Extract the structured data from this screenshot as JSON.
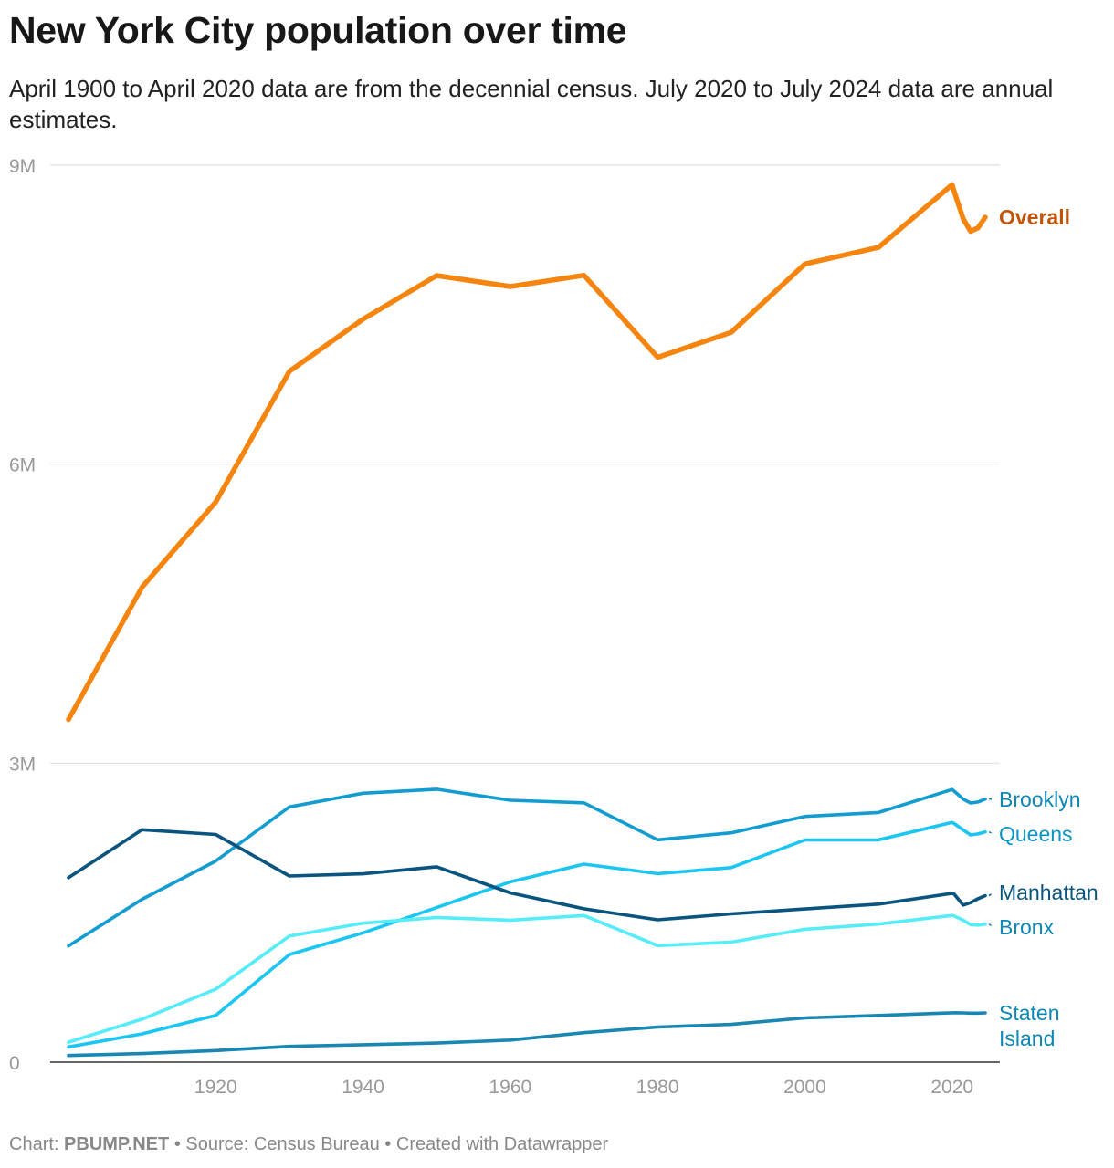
{
  "header": {
    "title": "New York City population over time",
    "subtitle": "April 1900 to April 2020 data are from the decennial census. July 2020 to July 2024 data are annual estimates."
  },
  "footer": {
    "chart_prefix": "Chart:",
    "chart_by": "PBUMP.NET",
    "sep1": "•",
    "source": "Source: Census Bureau",
    "sep2": "•",
    "created": "Created with Datawrapper"
  },
  "chart_data": {
    "type": "line",
    "title": "New York City population over time",
    "xlim": [
      1900,
      2024
    ],
    "ylim": [
      0,
      9000000
    ],
    "x_ticks": [
      {
        "value": 1920,
        "label": "1920"
      },
      {
        "value": 1940,
        "label": "1940"
      },
      {
        "value": 1960,
        "label": "1960"
      },
      {
        "value": 1980,
        "label": "1980"
      },
      {
        "value": 2000,
        "label": "2000"
      },
      {
        "value": 2020,
        "label": "2020"
      }
    ],
    "y_ticks": [
      {
        "value": 0,
        "label": "0"
      },
      {
        "value": 3000000,
        "label": "3M"
      },
      {
        "value": 6000000,
        "label": "6M"
      },
      {
        "value": 9000000,
        "label": "9M"
      }
    ],
    "grid": true,
    "legend": "direct labels at right end of lines",
    "series": [
      {
        "name": "Overall",
        "color": "#f5850e",
        "label_color": "#c0550a",
        "bold": true,
        "points": [
          [
            1900,
            3437202
          ],
          [
            1910,
            4766883
          ],
          [
            1920,
            5620048
          ],
          [
            1930,
            6930446
          ],
          [
            1940,
            7454995
          ],
          [
            1950,
            7891957
          ],
          [
            1960,
            7781984
          ],
          [
            1970,
            7894862
          ],
          [
            1980,
            7071639
          ],
          [
            1990,
            7322564
          ],
          [
            2000,
            8008278
          ],
          [
            2010,
            8175133
          ],
          [
            2020,
            8804190
          ],
          [
            2020.25,
            8740292
          ],
          [
            2021.5,
            8462216
          ],
          [
            2022.5,
            8335897
          ],
          [
            2023.5,
            8370296
          ],
          [
            2024.5,
            8478072
          ]
        ]
      },
      {
        "name": "Brooklyn",
        "color": "#139cd0",
        "label_color": "#0d87b5",
        "bold": false,
        "points": [
          [
            1900,
            1166582
          ],
          [
            1910,
            1634351
          ],
          [
            1920,
            2018356
          ],
          [
            1930,
            2560401
          ],
          [
            1940,
            2698285
          ],
          [
            1950,
            2738175
          ],
          [
            1960,
            2627319
          ],
          [
            1970,
            2602012
          ],
          [
            1980,
            2230936
          ],
          [
            1990,
            2300664
          ],
          [
            2000,
            2465326
          ],
          [
            2010,
            2504700
          ],
          [
            2020,
            2736074
          ],
          [
            2020.25,
            2720000
          ],
          [
            2021.5,
            2640000
          ],
          [
            2022.5,
            2600000
          ],
          [
            2023.5,
            2610000
          ],
          [
            2024.5,
            2640000
          ]
        ]
      },
      {
        "name": "Queens",
        "color": "#1cc6f3",
        "label_color": "#0d94c4",
        "bold": false,
        "points": [
          [
            1900,
            152999
          ],
          [
            1910,
            284041
          ],
          [
            1920,
            469042
          ],
          [
            1930,
            1079129
          ],
          [
            1940,
            1297634
          ],
          [
            1950,
            1550849
          ],
          [
            1960,
            1809578
          ],
          [
            1970,
            1986473
          ],
          [
            1980,
            1891325
          ],
          [
            1990,
            1951598
          ],
          [
            2000,
            2229379
          ],
          [
            2010,
            2230722
          ],
          [
            2020,
            2405464
          ],
          [
            2020.25,
            2395000
          ],
          [
            2021.5,
            2330000
          ],
          [
            2022.5,
            2280000
          ],
          [
            2023.5,
            2290000
          ],
          [
            2024.5,
            2310000
          ]
        ]
      },
      {
        "name": "Manhattan",
        "color": "#0a557f",
        "label_color": "#0a557f",
        "bold": false,
        "points": [
          [
            1900,
            1850093
          ],
          [
            1910,
            2331542
          ],
          [
            1920,
            2284103
          ],
          [
            1930,
            1867312
          ],
          [
            1940,
            1889924
          ],
          [
            1950,
            1960101
          ],
          [
            1960,
            1698281
          ],
          [
            1970,
            1539233
          ],
          [
            1980,
            1428285
          ],
          [
            1990,
            1487536
          ],
          [
            2000,
            1537195
          ],
          [
            2010,
            1585873
          ],
          [
            2020,
            1694251
          ],
          [
            2020.25,
            1687000
          ],
          [
            2021.5,
            1576000
          ],
          [
            2022.5,
            1600000
          ],
          [
            2023.5,
            1640000
          ],
          [
            2024.5,
            1670000
          ]
        ]
      },
      {
        "name": "Bronx",
        "color": "#56ecf8",
        "label_color": "#0d87b5",
        "bold": false,
        "points": [
          [
            1900,
            200507
          ],
          [
            1910,
            430980
          ],
          [
            1920,
            732016
          ],
          [
            1930,
            1265258
          ],
          [
            1940,
            1394711
          ],
          [
            1950,
            1451277
          ],
          [
            1960,
            1424815
          ],
          [
            1970,
            1471701
          ],
          [
            1980,
            1168972
          ],
          [
            1990,
            1203789
          ],
          [
            2000,
            1332650
          ],
          [
            2010,
            1385108
          ],
          [
            2020,
            1472654
          ],
          [
            2020.25,
            1468000
          ],
          [
            2021.5,
            1425000
          ],
          [
            2022.5,
            1380000
          ],
          [
            2023.5,
            1375000
          ],
          [
            2024.5,
            1385000
          ]
        ]
      },
      {
        "name": "Staten Island",
        "label_lines": [
          "Staten",
          "Island"
        ],
        "color": "#1a87b2",
        "label_color": "#0d87b5",
        "bold": false,
        "points": [
          [
            1900,
            67021
          ],
          [
            1910,
            85969
          ],
          [
            1920,
            116531
          ],
          [
            1930,
            158346
          ],
          [
            1940,
            174441
          ],
          [
            1950,
            191555
          ],
          [
            1960,
            221991
          ],
          [
            1970,
            295443
          ],
          [
            1980,
            352121
          ],
          [
            1990,
            378977
          ],
          [
            2000,
            443728
          ],
          [
            2010,
            468730
          ],
          [
            2020,
            495747
          ],
          [
            2020.25,
            496000
          ],
          [
            2021.5,
            494000
          ],
          [
            2022.5,
            492000
          ],
          [
            2023.5,
            492000
          ],
          [
            2024.5,
            494000
          ]
        ]
      }
    ]
  }
}
